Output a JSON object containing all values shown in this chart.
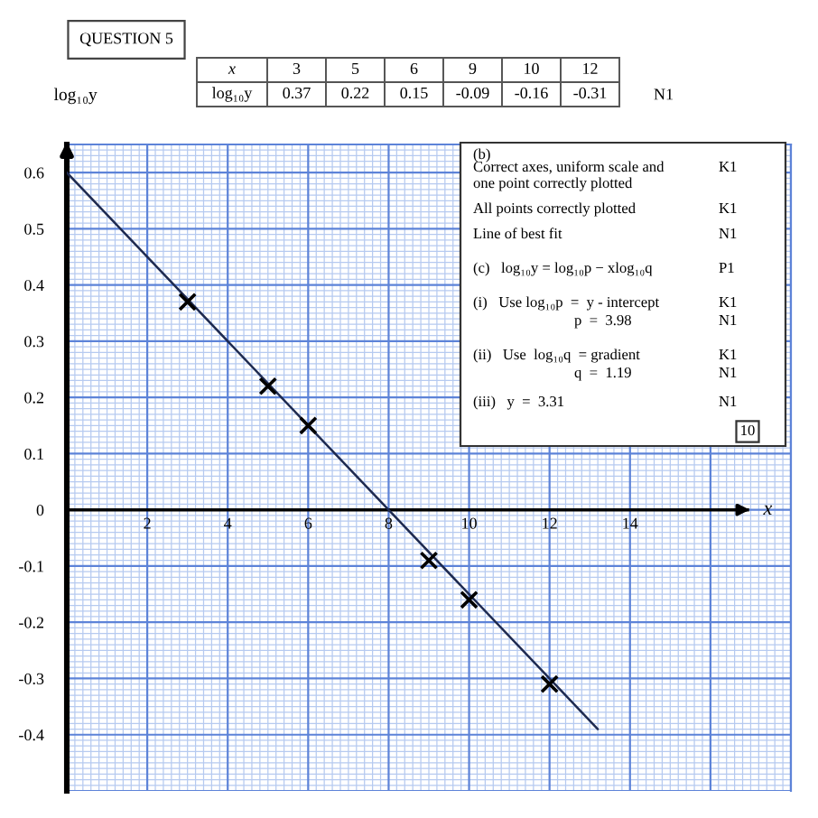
{
  "chart_data": [
    {
      "type": "scatter",
      "title": "QUESTION 5",
      "xlabel": "x",
      "ylabel": "log₁₀y",
      "series": [
        {
          "x": [
            3,
            5,
            6,
            9,
            10,
            12
          ],
          "values": [
            0.37,
            0.22,
            0.15,
            -0.09,
            -0.16,
            -0.31
          ],
          "color": "#000000",
          "marker": "cross"
        },
        {
          "type": "line",
          "x": [
            0,
            13.2
          ],
          "values": [
            0.6,
            -0.39
          ],
          "color": "#1e2a50",
          "line_style": "solid"
        }
      ],
      "xlim": [
        0,
        18
      ],
      "ylim": [
        -0.5,
        0.65
      ],
      "xticks": [
        {
          "value": 0,
          "label": null
        },
        {
          "value": 0.2,
          "label": null
        },
        {
          "value": 0.4,
          "label": null
        },
        {
          "value": 0.6,
          "label": null
        },
        {
          "value": 0.8,
          "label": null
        },
        {
          "value": 1,
          "label": null
        },
        {
          "value": 1.2,
          "label": null
        },
        {
          "value": 1.4,
          "label": null
        },
        {
          "value": 1.6,
          "label": null
        },
        {
          "value": 1.8,
          "label": null
        },
        2,
        {
          "value": 2.2,
          "label": null
        },
        {
          "value": 2.4,
          "label": null
        },
        {
          "value": 2.6,
          "label": null
        },
        {
          "value": 2.8,
          "label": null
        },
        {
          "value": 3,
          "label": null
        },
        {
          "value": 3.2,
          "label": null
        },
        {
          "value": 3.4,
          "label": null
        },
        {
          "value": 3.6,
          "label": null
        },
        {
          "value": 3.8,
          "label": null
        },
        4,
        {
          "value": 4.2,
          "label": null
        },
        {
          "value": 4.4,
          "label": null
        },
        {
          "value": 4.6,
          "label": null
        },
        {
          "value": 4.8,
          "label": null
        },
        {
          "value": 5,
          "label": null
        },
        {
          "value": 5.2,
          "label": null
        },
        {
          "value": 5.4,
          "label": null
        },
        {
          "value": 5.6,
          "label": null
        },
        {
          "value": 5.8,
          "label": null
        },
        6,
        {
          "value": 6.2,
          "label": null
        },
        {
          "value": 6.4,
          "label": null
        },
        {
          "value": 6.6,
          "label": null
        },
        {
          "value": 6.8,
          "label": null
        },
        {
          "value": 7,
          "label": null
        },
        {
          "value": 7.2,
          "label": null
        },
        {
          "value": 7.4,
          "label": null
        },
        {
          "value": 7.6,
          "label": null
        },
        {
          "value": 7.8,
          "label": null
        },
        8,
        {
          "value": 8.2,
          "label": null
        },
        {
          "value": 8.4,
          "label": null
        },
        {
          "value": 8.6,
          "label": null
        },
        {
          "value": 8.8,
          "label": null
        },
        {
          "value": 9,
          "label": null
        },
        {
          "value": 9.2,
          "label": null
        },
        {
          "value": 9.4,
          "label": null
        },
        {
          "value": 9.6,
          "label": null
        },
        {
          "value": 9.8,
          "label": null
        },
        10,
        {
          "value": 10.2,
          "label": null
        },
        {
          "value": 10.4,
          "label": null
        },
        {
          "value": 10.6,
          "label": null
        },
        {
          "value": 10.8,
          "label": null
        },
        {
          "value": 11,
          "label": null
        },
        {
          "value": 11.2,
          "label": null
        },
        {
          "value": 11.4,
          "label": null
        },
        {
          "value": 11.6,
          "label": null
        },
        {
          "value": 11.8,
          "label": null
        },
        12,
        {
          "value": 12.2,
          "label": null
        },
        {
          "value": 12.4,
          "label": null
        },
        {
          "value": 12.6,
          "label": null
        },
        {
          "value": 12.8,
          "label": null
        },
        {
          "value": 13,
          "label": null
        },
        {
          "value": 13.2,
          "label": null
        },
        {
          "value": 13.4,
          "label": null
        },
        {
          "value": 13.6,
          "label": null
        },
        {
          "value": 13.8,
          "label": null
        },
        14,
        {
          "value": 14.2,
          "label": null
        },
        {
          "value": 14.4,
          "label": null
        },
        {
          "value": 14.6,
          "label": null
        },
        {
          "value": 14.8,
          "label": null
        },
        {
          "value": 15,
          "label": null
        },
        {
          "value": 15.2,
          "label": null
        },
        {
          "value": 15.4,
          "label": null
        },
        {
          "value": 15.6,
          "label": null
        },
        {
          "value": 15.8,
          "label": null
        },
        {
          "value": 16,
          "label": null
        },
        {
          "value": 16.2,
          "label": null
        },
        {
          "value": 16.4,
          "label": null
        },
        {
          "value": 16.6,
          "label": null
        },
        {
          "value": 16.8,
          "label": null
        },
        {
          "value": 17,
          "label": null
        },
        {
          "value": 17.2,
          "label": null
        },
        {
          "value": 17.4,
          "label": null
        },
        {
          "value": 17.6,
          "label": null
        },
        {
          "value": 17.8,
          "label": null
        },
        {
          "value": 18,
          "label": null
        }
      ],
      "yticks": [
        {
          "value": -0.5,
          "label": null
        },
        {
          "value": -0.49,
          "label": null
        },
        {
          "value": -0.48,
          "label": null
        },
        {
          "value": -0.47,
          "label": null
        },
        {
          "value": -0.46,
          "label": null
        },
        {
          "value": -0.45,
          "label": null
        },
        {
          "value": -0.44,
          "label": null
        },
        {
          "value": -0.43,
          "label": null
        },
        {
          "value": -0.42,
          "label": null
        },
        {
          "value": -0.41,
          "label": null
        },
        -0.4,
        {
          "value": -0.39,
          "label": null
        },
        {
          "value": -0.38,
          "label": null
        },
        {
          "value": -0.37,
          "label": null
        },
        {
          "value": -0.36,
          "label": null
        },
        {
          "value": -0.35,
          "label": null
        },
        {
          "value": -0.34,
          "label": null
        },
        {
          "value": -0.33,
          "label": null
        },
        {
          "value": -0.32,
          "label": null
        },
        {
          "value": -0.31,
          "label": null
        },
        -0.3,
        {
          "value": -0.29,
          "label": null
        },
        {
          "value": -0.28,
          "label": null
        },
        {
          "value": -0.27,
          "label": null
        },
        {
          "value": -0.26,
          "label": null
        },
        {
          "value": -0.25,
          "label": null
        },
        {
          "value": -0.24,
          "label": null
        },
        {
          "value": -0.23,
          "label": null
        },
        {
          "value": -0.22,
          "label": null
        },
        {
          "value": -0.21,
          "label": null
        },
        -0.2,
        {
          "value": -0.19,
          "label": null
        },
        {
          "value": -0.18,
          "label": null
        },
        {
          "value": -0.17,
          "label": null
        },
        {
          "value": -0.16,
          "label": null
        },
        {
          "value": -0.15,
          "label": null
        },
        {
          "value": -0.14,
          "label": null
        },
        {
          "value": -0.13,
          "label": null
        },
        {
          "value": -0.12,
          "label": null
        },
        {
          "value": -0.11,
          "label": null
        },
        -0.1,
        {
          "value": -0.09,
          "label": null
        },
        {
          "value": -0.08,
          "label": null
        },
        {
          "value": -0.07,
          "label": null
        },
        {
          "value": -0.06,
          "label": null
        },
        {
          "value": -0.05,
          "label": null
        },
        {
          "value": -0.04,
          "label": null
        },
        {
          "value": -0.03,
          "label": null
        },
        {
          "value": -0.02,
          "label": null
        },
        {
          "value": -0.01,
          "label": null
        },
        0,
        {
          "value": 0.01,
          "label": null
        },
        {
          "value": 0.02,
          "label": null
        },
        {
          "value": 0.03,
          "label": null
        },
        {
          "value": 0.04,
          "label": null
        },
        {
          "value": 0.05,
          "label": null
        },
        {
          "value": 0.06,
          "label": null
        },
        {
          "value": 0.07,
          "label": null
        },
        {
          "value": 0.08,
          "label": null
        },
        {
          "value": 0.09,
          "label": null
        },
        0.1,
        {
          "value": 0.11,
          "label": null
        },
        {
          "value": 0.12,
          "label": null
        },
        {
          "value": 0.13,
          "label": null
        },
        {
          "value": 0.14,
          "label": null
        },
        {
          "value": 0.15,
          "label": null
        },
        {
          "value": 0.16,
          "label": null
        },
        {
          "value": 0.17,
          "label": null
        },
        {
          "value": 0.18,
          "label": null
        },
        {
          "value": 0.19,
          "label": null
        },
        0.2,
        {
          "value": 0.21,
          "label": null
        },
        {
          "value": 0.22,
          "label": null
        },
        {
          "value": 0.23,
          "label": null
        },
        {
          "value": 0.24,
          "label": null
        },
        {
          "value": 0.25,
          "label": null
        },
        {
          "value": 0.26,
          "label": null
        },
        {
          "value": 0.27,
          "label": null
        },
        {
          "value": 0.28,
          "label": null
        },
        {
          "value": 0.29,
          "label": null
        },
        0.3,
        {
          "value": 0.31,
          "label": null
        },
        {
          "value": 0.32,
          "label": null
        },
        {
          "value": 0.33,
          "label": null
        },
        {
          "value": 0.34,
          "label": null
        },
        {
          "value": 0.35,
          "label": null
        },
        {
          "value": 0.36,
          "label": null
        },
        {
          "value": 0.37,
          "label": null
        },
        {
          "value": 0.38,
          "label": null
        },
        {
          "value": 0.39,
          "label": null
        },
        0.4,
        {
          "value": 0.41,
          "label": null
        },
        {
          "value": 0.42,
          "label": null
        },
        {
          "value": 0.43,
          "label": null
        },
        {
          "value": 0.44,
          "label": null
        },
        {
          "value": 0.45,
          "label": null
        },
        {
          "value": 0.46,
          "label": null
        },
        {
          "value": 0.47,
          "label": null
        },
        {
          "value": 0.48,
          "label": null
        },
        {
          "value": 0.49,
          "label": null
        },
        0.5,
        {
          "value": 0.51,
          "label": null
        },
        {
          "value": 0.52,
          "label": null
        },
        {
          "value": 0.53,
          "label": null
        },
        {
          "value": 0.54,
          "label": null
        },
        {
          "value": 0.55,
          "label": null
        },
        {
          "value": 0.56,
          "label": null
        },
        {
          "value": 0.57,
          "label": null
        },
        {
          "value": 0.58,
          "label": null
        },
        {
          "value": 0.59,
          "label": null
        },
        0.6,
        {
          "value": 0.61,
          "label": null
        },
        {
          "value": 0.62,
          "label": null
        },
        {
          "value": 0.63,
          "label": null
        },
        {
          "value": 0.64,
          "label": null
        },
        {
          "value": 0.65,
          "label": null
        }
      ],
      "grid": true,
      "annotations": [
        "3",
        "5",
        "6",
        "9",
        "10",
        "12",
        "0.37",
        "0.22",
        "0.15",
        "-0.09",
        "-0.16",
        "-0.31",
        "N1"
      ]
    },
    {
      "type": "other",
      "annotations": [
        "(b)",
        "Correct axes, uniform scale and\none point correctly plotted",
        "K1",
        "All points correctly plotted",
        "K1",
        "Line of best fit",
        "N1",
        "(c)   log₁₀y = log₁₀p − xlog₁₀q",
        "P1",
        "(i)   Use log₁₀p  =  y - intercept",
        "K1",
        "p  =  3.98",
        "N1",
        "(ii)   Use  log₁₀q  = gradient",
        "K1",
        "q  =  1.19",
        "N1",
        "(iii)   y  =  3.31",
        "N1",
        "10"
      ]
    }
  ]
}
